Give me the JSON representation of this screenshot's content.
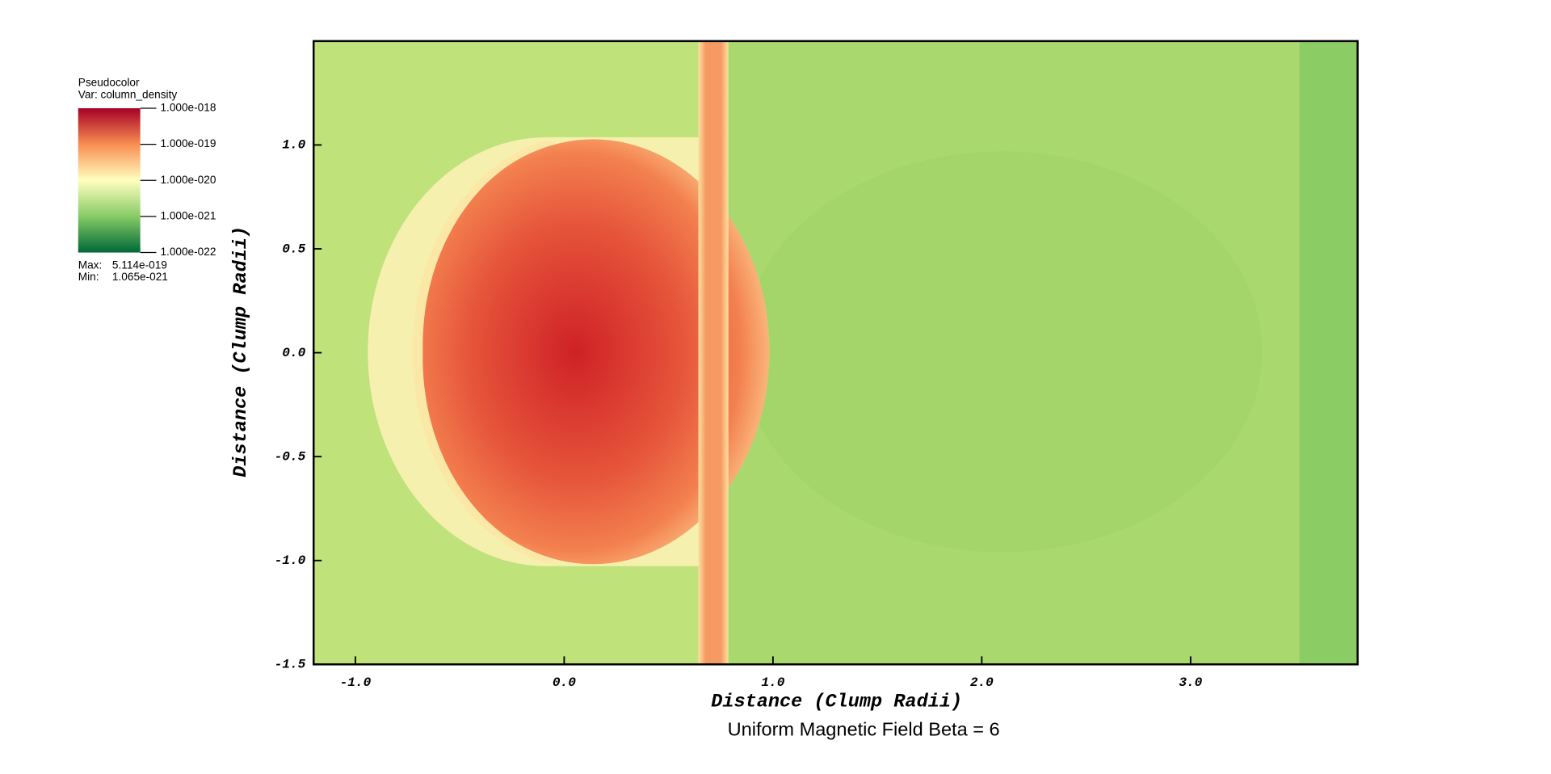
{
  "chart_data": {
    "type": "heatmap",
    "title": "Uniform Magnetic Field Beta = 6",
    "xlabel": "Distance (Clump Radii)",
    "ylabel": "Distance (Clump Radii)",
    "xlim": [
      -1.2,
      3.8
    ],
    "ylim": [
      -1.5,
      1.5
    ],
    "xticks": [
      {
        "value": -1,
        "label": "-1.0"
      },
      {
        "value": 0,
        "label": "0.0"
      },
      {
        "value": 1,
        "label": "1.0"
      },
      {
        "value": 2,
        "label": "2.0"
      },
      {
        "value": 3,
        "label": "3.0"
      }
    ],
    "yticks": [
      {
        "value": -1.5,
        "label": "-1.5"
      },
      {
        "value": -1,
        "label": "-1.0"
      },
      {
        "value": -0.5,
        "label": "-0.5"
      },
      {
        "value": 0,
        "label": "0.0"
      },
      {
        "value": 0.5,
        "label": "0.5"
      },
      {
        "value": 1,
        "label": "1.0"
      }
    ],
    "legend": {
      "title": "Pseudocolor",
      "var": "Var: column_density",
      "log_scale": true,
      "range": [
        1e-22,
        1e-18
      ],
      "ticks": [
        {
          "value": 1e-18,
          "label": "1.000e-018"
        },
        {
          "value": 1e-19,
          "label": "1.000e-019"
        },
        {
          "value": 1e-20,
          "label": "1.000e-020"
        },
        {
          "value": 1e-21,
          "label": "1.000e-021"
        },
        {
          "value": 1e-22,
          "label": "1.000e-022"
        }
      ],
      "max_label": "Max:",
      "max": {
        "value": 5.114e-19,
        "label": "5.114e-019"
      },
      "min_label": "Min:",
      "min": {
        "value": 1.065e-21,
        "label": "1.065e-021"
      }
    }
  }
}
